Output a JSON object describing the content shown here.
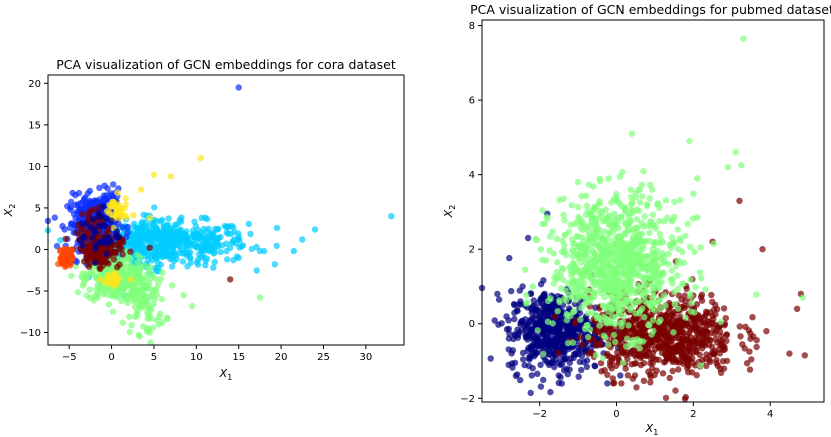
{
  "chart_data": [
    {
      "type": "scatter",
      "title": "PCA visualization of GCN embeddings for cora dataset",
      "xlabel_base": "X",
      "xlabel_sub": "1",
      "ylabel_base": "X",
      "ylabel_sub": "2",
      "xlim": [
        -7.5,
        34.5
      ],
      "ylim": [
        -11.5,
        21
      ],
      "xticks": [
        -5,
        0,
        5,
        10,
        15,
        20,
        25,
        30
      ],
      "yticks": [
        -10,
        -5,
        0,
        5,
        10,
        15,
        20
      ],
      "grid": false,
      "legend": "none",
      "series": [
        {
          "color": "#00ccff",
          "clusters": [
            {
              "center": [
                7,
                0.8
              ],
              "spread": [
                4.5,
                1.3
              ],
              "count": 420
            },
            {
              "center": [
                3,
                0.5
              ],
              "spread": [
                2.5,
                1.5
              ],
              "count": 160
            }
          ],
          "points": [
            [
              15,
              1.5
            ],
            [
              17.5,
              -0.2
            ],
            [
              18,
              -0.2
            ],
            [
              19.5,
              2.6
            ],
            [
              21.5,
              -0.2
            ],
            [
              22.5,
              1.2
            ],
            [
              24,
              2.4
            ],
            [
              33,
              4
            ],
            [
              14,
              0.2
            ],
            [
              15,
              -1
            ],
            [
              12,
              -2.2
            ],
            [
              12.5,
              2.4
            ]
          ]
        },
        {
          "color": "#80ff7a",
          "clusters": [
            {
              "center": [
                0.5,
                -3.5
              ],
              "spread": [
                1.8,
                1.4
              ],
              "count": 320
            },
            {
              "center": [
                4,
                -6.5
              ],
              "spread": [
                1.2,
                1.8
              ],
              "count": 80
            }
          ],
          "points": [
            [
              4.5,
              -10
            ],
            [
              4.2,
              -9.5
            ],
            [
              8.5,
              -5.5
            ],
            [
              9.5,
              -6.8
            ],
            [
              17.5,
              -5.8
            ]
          ]
        },
        {
          "color": "#0a2cff",
          "clusters": [
            {
              "center": [
                -2.2,
                3.2
              ],
              "spread": [
                1.5,
                1.6
              ],
              "count": 260
            },
            {
              "center": [
                -0.5,
                5.5
              ],
              "spread": [
                0.8,
                0.8
              ],
              "count": 60
            }
          ],
          "points": [
            [
              15,
              19.5
            ]
          ]
        },
        {
          "color": "#ffe51a",
          "clusters": [
            {
              "center": [
                0.5,
                4.5
              ],
              "spread": [
                0.7,
                0.9
              ],
              "count": 40
            },
            {
              "center": [
                0.5,
                -3.5
              ],
              "spread": [
                0.8,
                0.6
              ],
              "count": 20
            }
          ],
          "points": [
            [
              3.5,
              7.2
            ],
            [
              5,
              9
            ],
            [
              7,
              8.8
            ],
            [
              10.5,
              11
            ],
            [
              4.5,
              3.8
            ]
          ]
        },
        {
          "color": "#7a0000",
          "clusters": [
            {
              "center": [
                -1.5,
                0
              ],
              "spread": [
                1.3,
                1.0
              ],
              "count": 160
            },
            {
              "center": [
                -2.5,
                3
              ],
              "spread": [
                0.8,
                1.0
              ],
              "count": 30
            }
          ],
          "points": [
            [
              14,
              -3.6
            ],
            [
              4.5,
              0.2
            ]
          ]
        },
        {
          "color": "#ff4400",
          "clusters": [
            {
              "center": [
                -5.3,
                -1.0
              ],
              "spread": [
                0.3,
                0.5
              ],
              "count": 90
            }
          ],
          "points": []
        },
        {
          "color": "#000090",
          "clusters": [
            {
              "center": [
                -1.5,
                2.0
              ],
              "spread": [
                1.2,
                1.5
              ],
              "count": 40
            }
          ],
          "points": []
        }
      ]
    },
    {
      "type": "scatter",
      "title": "PCA visualization of GCN embeddings for pubmed dataset",
      "xlabel_base": "X",
      "xlabel_sub": "1",
      "ylabel_base": "X",
      "ylabel_sub": "2",
      "xlim": [
        -3.5,
        5.4
      ],
      "ylim": [
        -2.1,
        8.15
      ],
      "xticks": [
        -2,
        0,
        2,
        4
      ],
      "yticks": [
        -2,
        0,
        2,
        4,
        6,
        8
      ],
      "grid": false,
      "legend": "none",
      "series": [
        {
          "color": "#00007f",
          "clusters": [
            {
              "center": [
                -1.6,
                -0.2
              ],
              "spread": [
                0.6,
                0.55
              ],
              "count": 550
            }
          ],
          "points": [
            [
              -3.1,
              0.8
            ],
            [
              -2.3,
              2.3
            ],
            [
              -1.8,
              2.95
            ],
            [
              -2.8,
              -0.4
            ],
            [
              -2.5,
              0.6
            ]
          ]
        },
        {
          "color": "#7a0000",
          "clusters": [
            {
              "center": [
                1.2,
                -0.3
              ],
              "spread": [
                0.95,
                0.55
              ],
              "count": 750
            }
          ],
          "points": [
            [
              4.8,
              0.8
            ],
            [
              4.7,
              0.4
            ],
            [
              4.5,
              -0.8
            ],
            [
              4.9,
              -0.85
            ],
            [
              3.9,
              -0.2
            ],
            [
              3.2,
              3.3
            ],
            [
              3.8,
              2.0
            ],
            [
              2.5,
              2.2
            ]
          ]
        },
        {
          "color": "#80ff7a",
          "clusters": [
            {
              "center": [
                0.0,
                1.6
              ],
              "spread": [
                0.85,
                0.9
              ],
              "count": 900
            }
          ],
          "points": [
            [
              3.3,
              7.65
            ],
            [
              0.4,
              5.1
            ],
            [
              1.9,
              4.9
            ],
            [
              3.1,
              4.6
            ],
            [
              3.25,
              4.25
            ],
            [
              2.1,
              3.9
            ],
            [
              2.9,
              4.2
            ],
            [
              -1.0,
              3.8
            ],
            [
              4.85,
              0.7
            ],
            [
              -0.2,
              3.9
            ]
          ]
        }
      ]
    }
  ]
}
